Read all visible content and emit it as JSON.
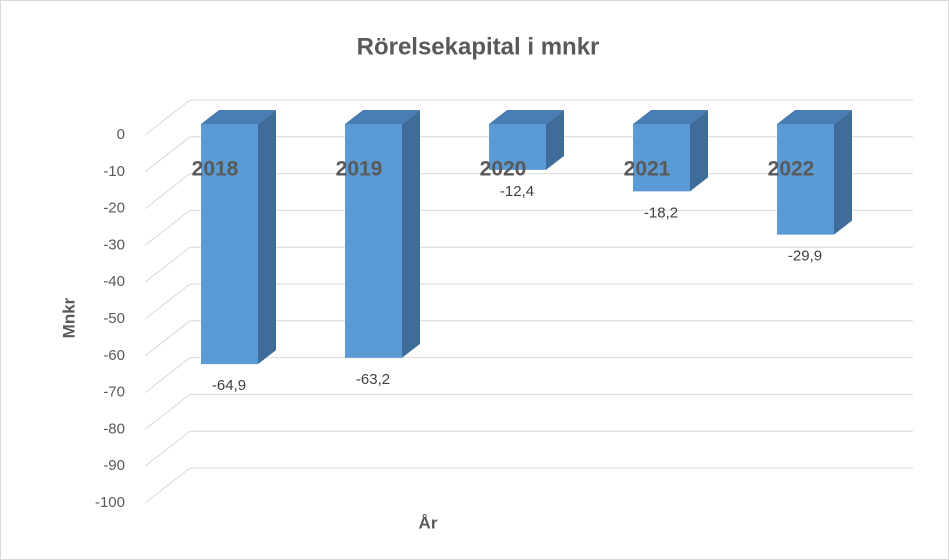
{
  "chart_data": {
    "type": "bar3d",
    "title": "Rörelsekapital i mnkr",
    "categories": [
      "2018",
      "2019",
      "2020",
      "2021",
      "2022"
    ],
    "values": [
      -64.9,
      -63.2,
      -12.4,
      -18.2,
      -29.9
    ],
    "value_labels": [
      "-64,9",
      "-63,2",
      "-12,4",
      "-18,2",
      "-29,9"
    ],
    "color": "#5b9bd5",
    "ylim": [
      -100,
      0
    ],
    "yticks": [
      0,
      -10,
      -20,
      -30,
      -40,
      -50,
      -60,
      -70,
      -80,
      -90,
      -100
    ],
    "y_label": "Mnkr",
    "x_label": "År",
    "grid": true
  }
}
